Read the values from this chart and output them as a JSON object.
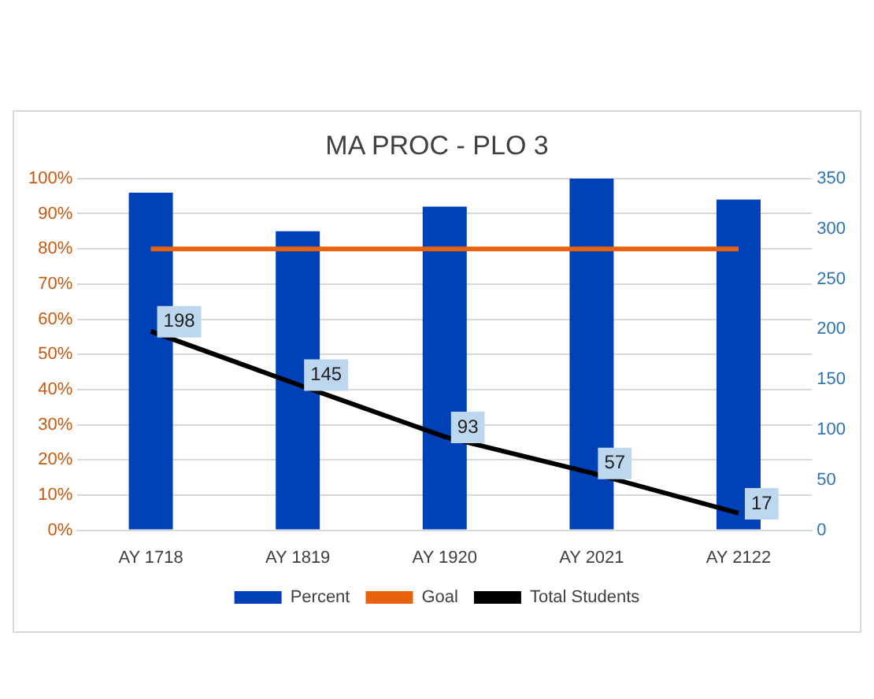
{
  "chart_data": {
    "type": "bar",
    "title": "MA PROC - PLO 3",
    "categories": [
      "AY 1718",
      "AY 1819",
      "AY 1920",
      "AY 2021",
      "AY 2122"
    ],
    "series": [
      {
        "name": "Percent",
        "color": "#0041b8",
        "values": [
          96,
          85,
          92,
          100,
          94
        ]
      },
      {
        "name": "Goal",
        "type": "line",
        "color": "#e8620c",
        "values": [
          80,
          80,
          80,
          80,
          80
        ]
      },
      {
        "name": "Total Students",
        "type": "line",
        "axis": "y2",
        "color": "#000000",
        "values": [
          198,
          145,
          93,
          57,
          17
        ],
        "value_labels": [
          "198",
          "145",
          "93",
          "57",
          "17"
        ]
      }
    ],
    "ylim": [
      0,
      100
    ],
    "yticks": [
      {
        "value": 0,
        "label": "0%"
      },
      {
        "value": 10,
        "label": "10%"
      },
      {
        "value": 20,
        "label": "20%"
      },
      {
        "value": 30,
        "label": "30%"
      },
      {
        "value": 40,
        "label": "40%"
      },
      {
        "value": 50,
        "label": "50%"
      },
      {
        "value": 60,
        "label": "60%"
      },
      {
        "value": 70,
        "label": "70%"
      },
      {
        "value": 80,
        "label": "80%"
      },
      {
        "value": 90,
        "label": "90%"
      },
      {
        "value": 100,
        "label": "100%"
      }
    ],
    "y2lim": [
      0,
      350
    ],
    "y2ticks": [
      0,
      50,
      100,
      150,
      200,
      250,
      300,
      350
    ],
    "grid": "y",
    "legend": "bottom",
    "marker": "none"
  }
}
